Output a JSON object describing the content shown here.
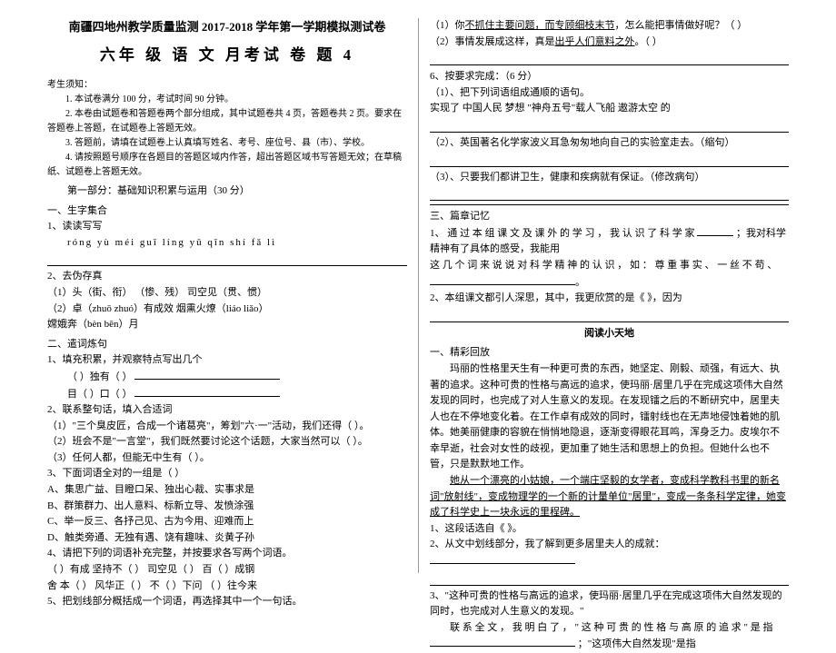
{
  "left": {
    "title_1": "南疆四地州教学质量监测 2017-2018 学年第一学期模拟测试卷",
    "title_2": "六年 级 语 文 月考试 卷 题 4",
    "notice_label": "考生须知：",
    "notice_1": "1. 本试卷满分 100 分，考试时间 90 分钟。",
    "notice_2": "2. 本卷由试题卷和答题卷两个部分组成，其中试题卷共 4 页，答题卷共 2 页。要求在答题卷上答题，在试题卷上答题无效。",
    "notice_3": "3. 答题前，请填在试题卷上认真填写姓名、考号、座位号、县（市）、学校。",
    "notice_4": "4. 请按照题号顺序在各题目的答题区域内作答，超出答题区域书写答题无效；在草稿纸、试题卷上答题无效。",
    "part_1": "第一部分：基础知识积累与运用（30 分）",
    "s1": "一、生字集合",
    "s1_1": "1、读读写写",
    "pinyin": "róng yù        méi guī        líng yǔ        qīn shí        fǎ lì",
    "s1_2": "2、去伪存真",
    "s1_2a": "（1）头（街、衔）      （惨、残）     司空见（贯、惯）",
    "s1_2b": "（2）卓（zhuō zhuó）有成效      烟熏火燎（liáo liǎo）",
    "s1_2c": "       嫦娥奔（bèn bēn）月",
    "s2": "二、遣词炼句",
    "s2_1": "1、填充积累，并观察特点写出几个",
    "s2_1a": "（    ）独有（    ）",
    "s2_1b": "目（    ）口（    ）",
    "s2_2": "2、联系整句话，填入合适词",
    "s2_2a": "（1）\"三个臭皮匠，合成一个诸葛亮\"，筹划\"六·一\"活动，我们还得（        ）。",
    "s2_2b": "（2）班会不是\"一言堂\"，我们既然要讨论这个话题，大家当然可以（        ）。",
    "s2_2c": "（3）任何人都，但能无中生有（                                      ）。",
    "s2_3": "3、下面词语全对的一组是（    ）",
    "optA": "A、集思广益、目瞪口呆、独出心裁、实事求是",
    "optB": "B、群策群力、出人意料、标新立导、发愤涂强",
    "optC": "C、举一反三、各抒己见、古为今用、迎难而上",
    "optD": "D、触类旁通、无独有遇、饶有趣味、炎黄子孙",
    "s2_4": "4、请把下列的词语补充完整，并按要求各写两个词语。",
    "s2_4a": "（    ）有成   坚持不（    ）   司空见（    ）   百（    ）成钢",
    "s2_4b": "舍 本（    ）   风华正（    ）   不（    ）下问   （    ）往今来",
    "s2_5": "5、把划线部分概括成一个词语，再选择其中一个一句话。"
  },
  "right": {
    "q5_1a": "（1）你",
    "q5_1b": "不抓住主要问题，而专顾细枝末节",
    "q5_1c": "，怎么能把事情做好呢？（        ）",
    "q5_2a": "（2）事情发展成这样，真是",
    "q5_2b": "出乎人们意料之外",
    "q5_2c": "。（        ）",
    "s6": "6、按要求完成：（6 分）",
    "s6_1": "（1）、把下列词语组成通顺的语句。",
    "s6_1a": "实现了  中国人民  梦想  \"神舟五号\"载人飞船  遨游太空  的",
    "s6_2": "（2）、英国著名化学家波义耳急匆匆地向自己的实验室走去。（缩句）",
    "s6_3": "（3）、只要我们都讲卫生，健康和疾病就有保证。（修改病句）",
    "s3": "三、篇章记忆",
    "s3_1a": "1、 通 过 本 组 课 文 及 课 外 的 学 习 ， 我 认 识 了 科 学 家",
    "s3_1b": "；我对科学精神有了具体的感受，我能用",
    "s3_1c": "这 几 个 词 来 说 说 对 科 学 精 神 的 认 识 ， 如 ： 尊 重 事 实 、 一 丝 不 苟 、",
    "s3_2": "2、本组课文都引人深思，其中，我更欣赏的是《              》，因为",
    "read_title": "阅读小天地",
    "r1": "一、精彩回放",
    "p1": "玛丽的性格里天生有一种更可贵的东西，她坚定、刚毅、顽强，有远大、执著的追求。这种可贵的性格与高远的追求，使玛丽·居里几乎在完成这项伟大自然发现的同时，也完成了对人生意义的发现。在发现镭之后的不断研究中，居里夫人也在不停地变化着。在工作卓有成效的同时，镭射线也在无声地侵蚀着她的肌体。她美丽健康的容貌在悄悄地隐退，逐渐变得眼花耳鸣，浑身乏力。皮埃尔不幸早逝，社会对女性的歧视，更加重了她生活和思想上的负担。但她什么也不管，只是默默地工作。",
    "p2a": "她从一个漂亮的小姑娘，一个端庄坚毅的女学者，变成科学教科书里的新名词\"放射线\"，变成物理学的一个新的计量单位\"居里\"，变成一条条科学定律，她变成了科学史上一块永远的里程碑。",
    "r1_1": "1、这段话选自《                》。",
    "r1_2": "2、从文中划线部分，我了解到更多居里夫人的成就：",
    "r1_3": "3、\"这种可贵的性格与高远的追求，使玛丽·居里几乎在完成这项伟大自然发现的同时，也完成对人生意义的发现。\"",
    "r1_3a": "联 系 全 文 ， 我 明 白 了 ， \" 这 种 可 贵 的 性 格 与 高 原 的 追 求 \" 是 指",
    "r1_3b": "；\"这项伟大自然发现\"是指"
  },
  "colors": {
    "text": "#000000",
    "bg": "#ffffff",
    "border": "#999999"
  },
  "typography": {
    "body_fontsize": 11,
    "title1_fontsize": 13,
    "title2_fontsize": 17
  }
}
